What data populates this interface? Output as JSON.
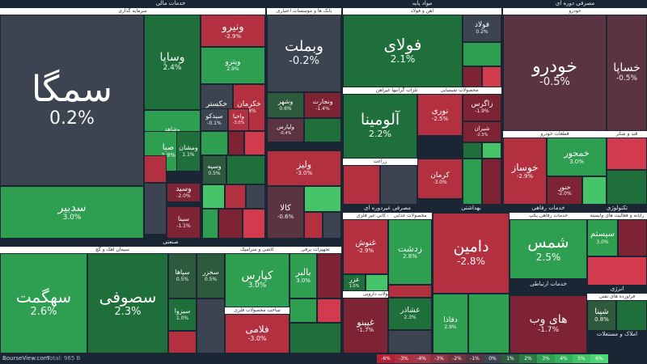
{
  "chart_data": {
    "type": "treemap",
    "colors": {
      "dark": "#3b4450",
      "green": "#2e9e51",
      "green_dark": "#1f6f3a",
      "green_light": "#45c46a",
      "red": "#b33040",
      "red_dark": "#7e2333",
      "red_light": "#d23a4d"
    },
    "sectors": [
      {
        "name": "خدمات مالی",
        "subsectors": [
          "سرمایه گذاری",
          "بانک ها و موسسات اعتباری"
        ]
      },
      {
        "name": "مواد پایه",
        "subsectors": [
          "آهن و فولاد",
          "تولید فلزات گرانبها غیرآهن",
          "محصولات شیمیایی",
          "زراعت"
        ]
      },
      {
        "name": "مصرفی دوره ای",
        "subsectors": [
          "خودرو",
          "قطعات خودرو",
          "قند و شکر"
        ]
      },
      {
        "name": "صنعتی",
        "subsectors": [
          "سیمان آهک و گچ",
          "کاشی و سرامیک",
          "تجهیزات برقی",
          "ساخت محصولات فلزی"
        ]
      },
      {
        "name": "مصرفی غیردوره ای",
        "subsectors": [
          "سایر محصولات کانی غیر فلزی",
          "مواد و محصولات دارویی",
          "محصولات غذایی"
        ]
      },
      {
        "name": "بهداشتی"
      },
      {
        "name": "خدمات رفاهی",
        "subsectors": [
          "خدمات رفاهی یکپ"
        ]
      },
      {
        "name": "خدمات ارتباطی"
      },
      {
        "name": "تکنولوژی",
        "subsectors": [
          "رایانه و فعالیت های وابسته"
        ]
      },
      {
        "name": "انرژی",
        "subsectors": [
          "فرآورده های نفتی"
        ]
      },
      {
        "name": "املاک و مستغلات"
      }
    ],
    "stocks": [
      {
        "name": "سمگا",
        "change": "0.2%"
      },
      {
        "name": "سدبیر",
        "change": "3.0%"
      },
      {
        "name": "وساپا",
        "change": "2.4%"
      },
      {
        "name": "ونیرو",
        "change": "-2.9%"
      },
      {
        "name": "ویترو",
        "change": "2.9%"
      },
      {
        "name": "خکستر",
        "change": "0.1%"
      },
      {
        "name": "خکرمان",
        "change": "-2.8%"
      },
      {
        "name": "سیدکو",
        "change": "-0.1%"
      },
      {
        "name": "واحیا",
        "change": "-3.0%"
      },
      {
        "name": "وشاهد",
        "change": "2.8%"
      },
      {
        "name": "صبا",
        "change": "2.9%"
      },
      {
        "name": "ومشان",
        "change": "1.1%"
      },
      {
        "name": "وسپه",
        "change": "0.5%"
      },
      {
        "name": "وسید",
        "change": "-2.0%"
      },
      {
        "name": "سینا",
        "change": "-1.1%"
      },
      {
        "name": "وبملت",
        "change": "-0.2%"
      },
      {
        "name": "وشهر",
        "change": "0.6%"
      },
      {
        "name": "ونجارت",
        "change": "-1.4%"
      },
      {
        "name": "ولپارس",
        "change": "-0.4%"
      },
      {
        "name": "ولیز",
        "change": "-3.0%"
      },
      {
        "name": "کالا",
        "change": "-0.6%"
      },
      {
        "name": "فولاد",
        "change": "0.2%"
      },
      {
        "name": "فولای",
        "change": "2.1%"
      },
      {
        "name": "آلومینا",
        "change": "2.2%"
      },
      {
        "name": "نوری",
        "change": "-2.5%"
      },
      {
        "name": "زاگرس",
        "change": "-1.9%"
      },
      {
        "name": "کرمان",
        "change": "-3.0%"
      },
      {
        "name": "شیران",
        "change": "-2.3%"
      },
      {
        "name": "خودرو",
        "change": "-0.5%"
      },
      {
        "name": "خساپا",
        "change": "-0.5%"
      },
      {
        "name": "خمحور",
        "change": "3.0%"
      },
      {
        "name": "خوساز",
        "change": "-2.9%"
      },
      {
        "name": "خنور",
        "change": "-2.0%"
      },
      {
        "name": "سهگمت",
        "change": "2.6%"
      },
      {
        "name": "سصوفی",
        "change": "2.3%"
      },
      {
        "name": "سپاها",
        "change": "0.5%"
      },
      {
        "name": "سخزر",
        "change": "0.5%"
      },
      {
        "name": "سیزوا",
        "change": "1.0%"
      },
      {
        "name": "کپارس",
        "change": "3.0%"
      },
      {
        "name": "بالبر",
        "change": "3.0%"
      },
      {
        "name": "فلامی",
        "change": "-3.0%"
      },
      {
        "name": "غنوش",
        "change": "-2.9%"
      },
      {
        "name": "زدشت",
        "change": "2.8%"
      },
      {
        "name": "غزر",
        "change": "1.0%"
      },
      {
        "name": "غپینو",
        "change": "-1.7%"
      },
      {
        "name": "غشاذر",
        "change": "2.3%"
      },
      {
        "name": "دامین",
        "change": "-2.8%"
      },
      {
        "name": "دقاذا",
        "change": "2.9%"
      },
      {
        "name": "شمس",
        "change": "2.5%"
      },
      {
        "name": "های وب",
        "change": "-1.7%"
      },
      {
        "name": "سیستم",
        "change": "3.0%"
      },
      {
        "name": "شپنا",
        "change": "0.8%"
      }
    ],
    "footer_total": "Total: 965 B",
    "legend": [
      "-6%",
      "-3%",
      "-4%",
      "-3%",
      "-2%",
      "-1%",
      "0%",
      "1%",
      "2%",
      "3%",
      "4%",
      "5%",
      "6%"
    ]
  },
  "brand": "BourseView.com"
}
